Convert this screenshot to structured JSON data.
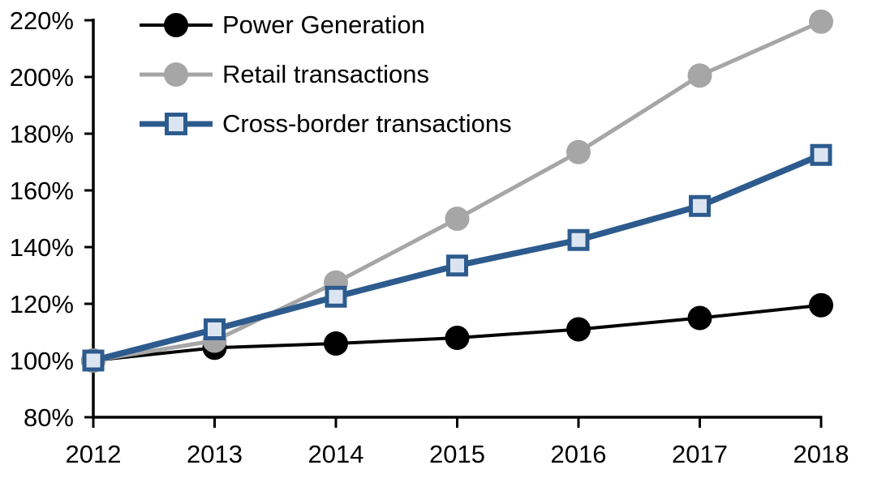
{
  "chart_data": {
    "type": "line",
    "title": "",
    "xlabel": "",
    "ylabel": "",
    "x": [
      2012,
      2013,
      2014,
      2015,
      2016,
      2017,
      2018
    ],
    "x_tick_labels": [
      "2012",
      "2013",
      "2014",
      "2015",
      "2016",
      "2017",
      "2018"
    ],
    "ylim": [
      80,
      220
    ],
    "y_tick_step": 20,
    "y_tick_suffix": "%",
    "y_tick_labels": [
      "80%",
      "100%",
      "120%",
      "140%",
      "160%",
      "180%",
      "200%",
      "220%"
    ],
    "grid": false,
    "legend_position": "top-left",
    "axis_color": "#000000",
    "background_color": "#ffffff",
    "series": [
      {
        "name": "Power Generation",
        "values": [
          100,
          104.5,
          106,
          108,
          111,
          115,
          119.5
        ],
        "line_color": "#000000",
        "marker": "circle",
        "marker_fill": "#000000",
        "marker_stroke": "#000000"
      },
      {
        "name": "Retail transactions",
        "values": [
          100,
          107,
          127.5,
          150,
          173.5,
          200.5,
          219.5
        ],
        "line_color": "#a6a6a6",
        "marker": "circle",
        "marker_fill": "#a6a6a6",
        "marker_stroke": "#a6a6a6"
      },
      {
        "name": "Cross-border transactions",
        "values": [
          100,
          111,
          122.5,
          133.5,
          142.5,
          154.5,
          172.5
        ],
        "line_color": "#2d5b8e",
        "marker": "square",
        "marker_fill": "#dbe5f1",
        "marker_stroke": "#2d5b8e"
      }
    ]
  }
}
